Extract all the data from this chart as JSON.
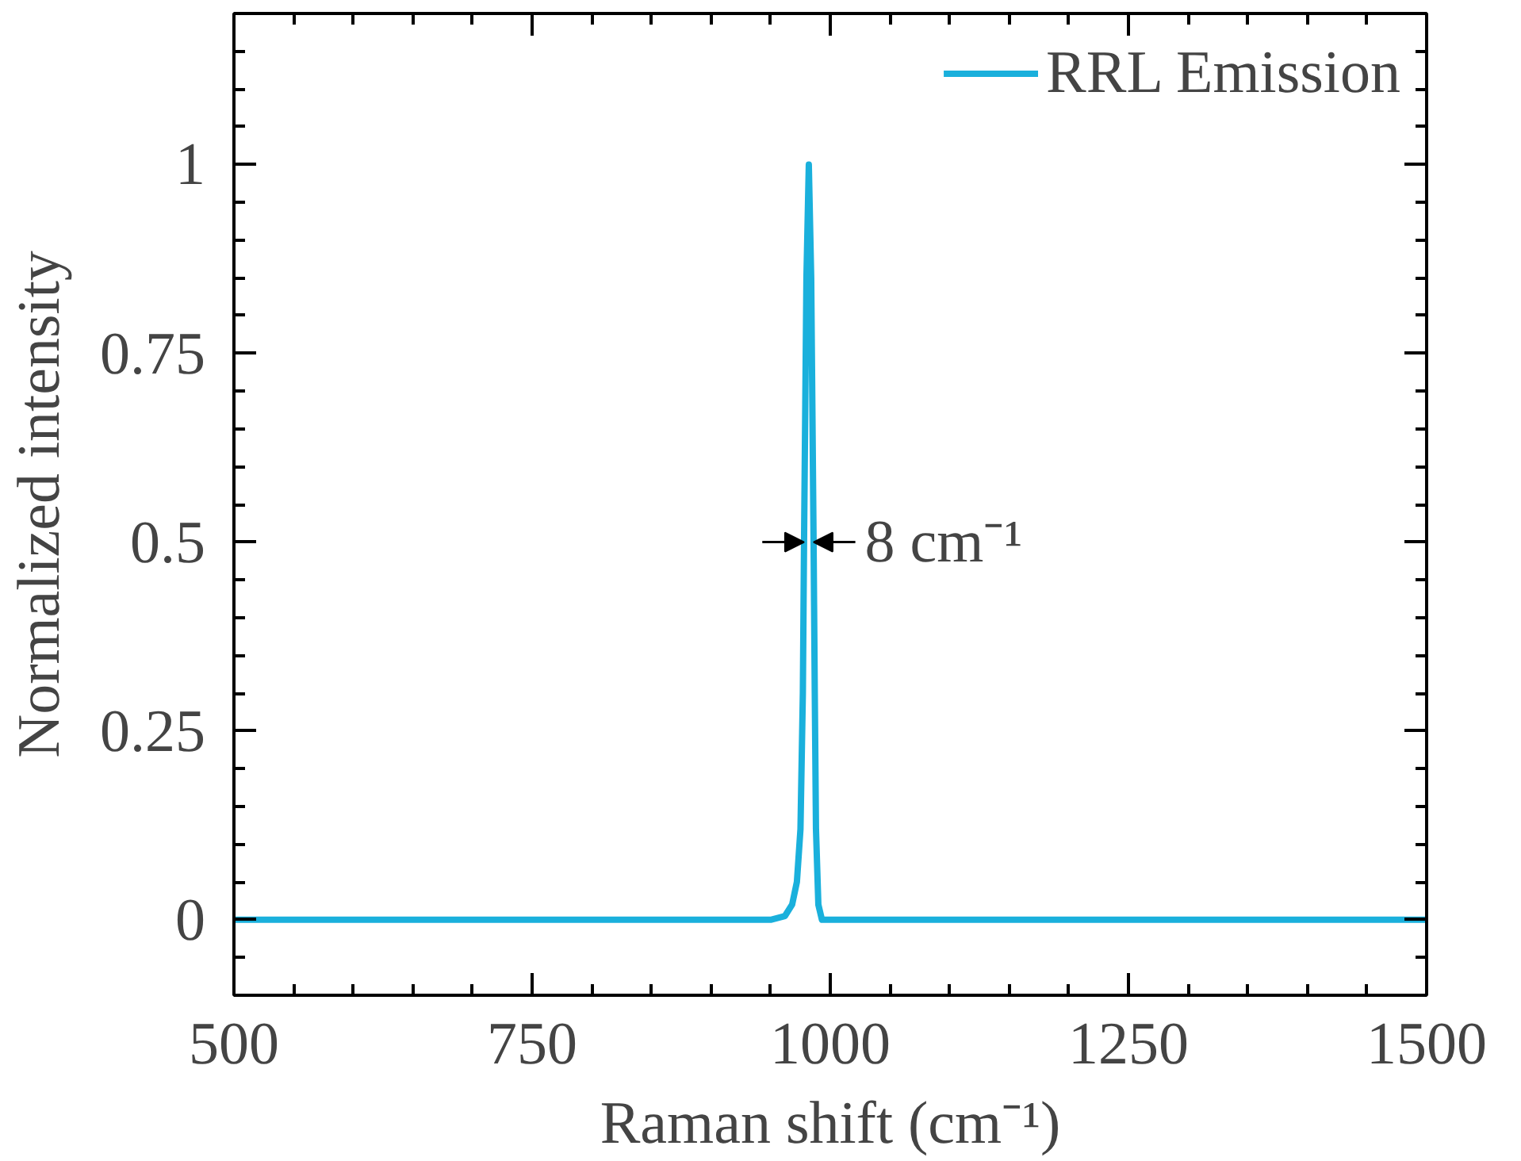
{
  "chart_data": {
    "type": "line",
    "xlabel": "Raman shift (cm⁻¹)",
    "ylabel": "Normalized intensity",
    "x": [
      500,
      600,
      700,
      800,
      900,
      950,
      962,
      968,
      972,
      975,
      977,
      978,
      980,
      982,
      984,
      986,
      987,
      988,
      990,
      993,
      1000,
      1100,
      1200,
      1300,
      1400,
      1500
    ],
    "series": [
      {
        "name": "RRL Emission",
        "color": "#1ab0dc",
        "values": [
          0,
          0,
          0,
          0,
          0,
          0,
          0.005,
          0.02,
          0.05,
          0.12,
          0.3,
          0.5,
          0.85,
          1,
          0.85,
          0.5,
          0.3,
          0.12,
          0.02,
          0,
          0,
          0,
          0,
          0,
          0,
          0
        ]
      }
    ],
    "xlim": [
      500,
      1500
    ],
    "ylim": [
      -0.1,
      1.2
    ],
    "xticks": [
      500,
      750,
      1000,
      1250,
      1500
    ],
    "yticks": [
      0,
      0.25,
      0.5,
      0.75,
      1
    ],
    "annotations": [
      {
        "text": "8 cm⁻¹",
        "x": 986,
        "y": 0.5
      }
    ],
    "legend": "top right",
    "grid": false,
    "marker": "none",
    "line_style": "solid"
  }
}
